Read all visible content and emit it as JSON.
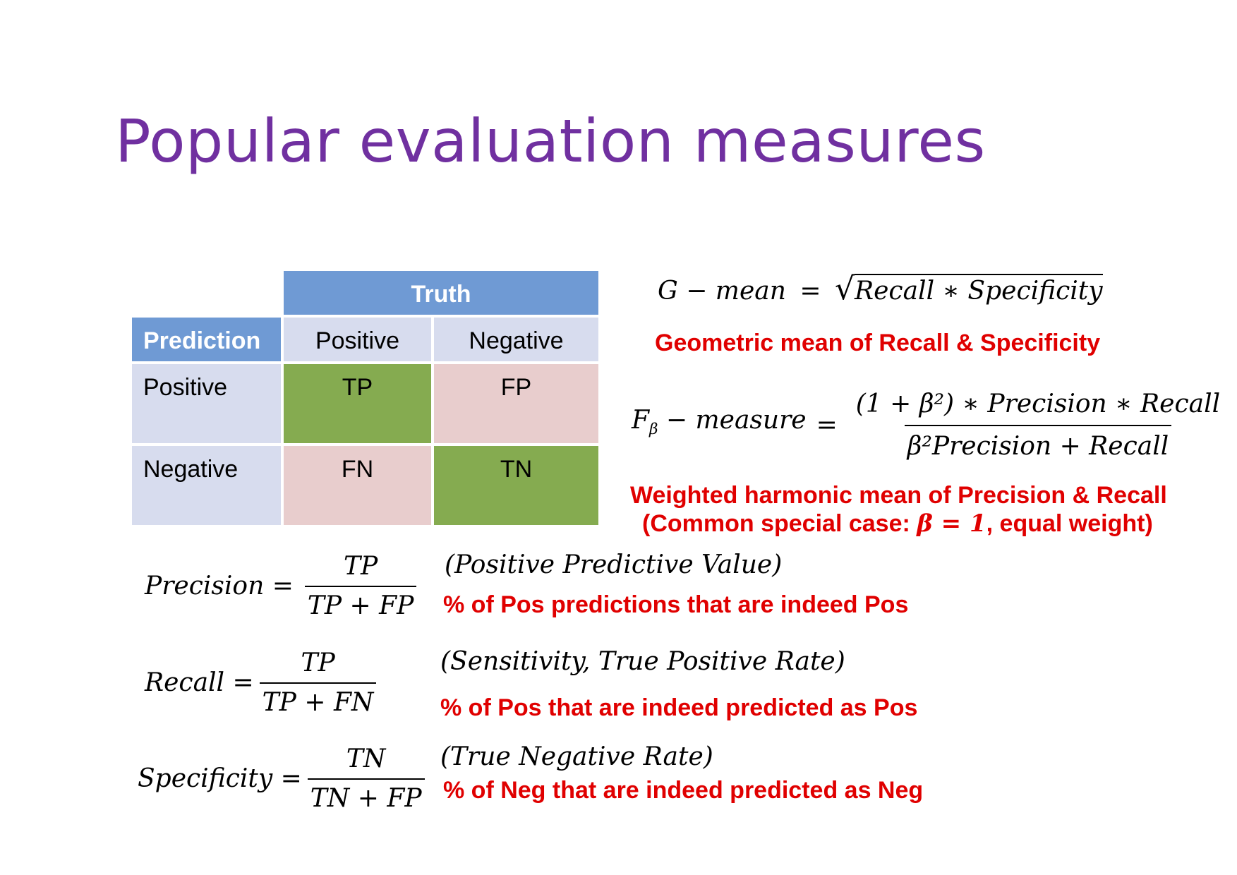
{
  "title": "Popular evaluation measures",
  "confusion_matrix": {
    "truth_header": "Truth",
    "prediction_header": "Prediction",
    "col_positive": "Positive",
    "col_negative": "Negative",
    "row_positive": "Positive",
    "row_negative": "Negative",
    "tp": "TP",
    "fp": "FP",
    "fn": "FN",
    "tn": "TN"
  },
  "gmean": {
    "lhs": "G − mean ",
    "eq": "=",
    "radicand": "Recall ∗ Specificity",
    "desc": "Geometric mean of Recall & Specificity"
  },
  "fbeta": {
    "lhs_f": "F",
    "lhs_sub": "β",
    "lhs_rest": " − measure ",
    "eq": "=",
    "numerator": "(1 + β²) ∗ Precision ∗ Recall",
    "denominator": "β²Precision + Recall",
    "desc_line1": "Weighted harmonic mean of Precision & Recall",
    "desc_line2_pre": "(Common special case: ",
    "desc_line2_math": "β = 1",
    "desc_line2_post": ", equal weight)"
  },
  "precision": {
    "lhs": "Precision =",
    "numerator": "TP",
    "denominator": "TP + FP",
    "alias": "(Positive Predictive Value)",
    "desc": "% of Pos predictions that are indeed Pos"
  },
  "recall": {
    "lhs": "Recall =",
    "numerator": "TP",
    "denominator": "TP + FN",
    "alias": "(Sensitivity, True Positive Rate)",
    "desc": "% of Pos that are indeed predicted as Pos"
  },
  "specificity": {
    "lhs": "Specificity =",
    "numerator": "TN",
    "denominator": "TN + FP",
    "alias": "(True Negative Rate)",
    "desc": "% of Neg that are indeed predicted as Neg"
  },
  "colors": {
    "title": "#7030a0",
    "header_blue": "#6f9ad4",
    "lavender": "#d7dcee",
    "green": "#85ab50",
    "pink": "#e8cdcd",
    "red_text": "#e00000"
  }
}
